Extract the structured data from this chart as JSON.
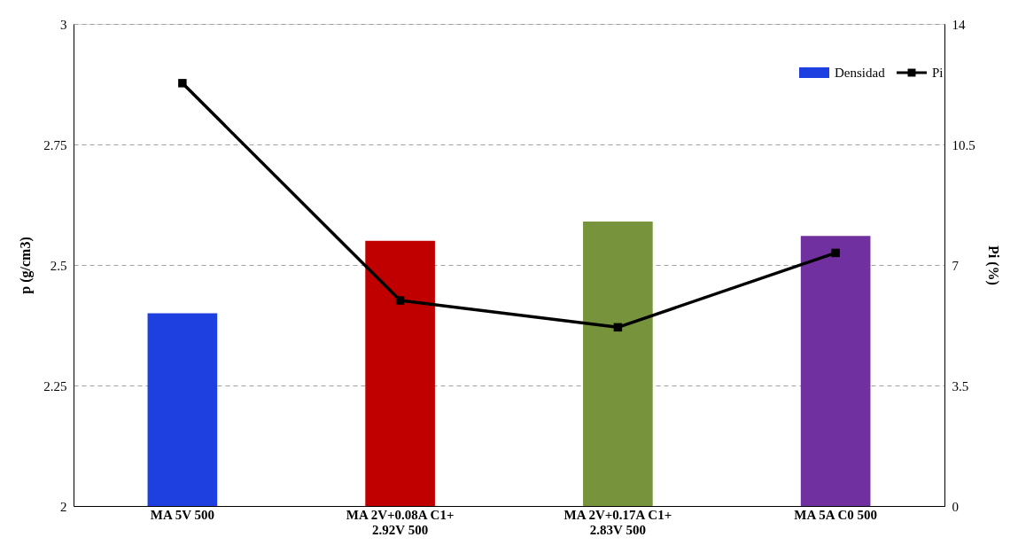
{
  "chart_data": {
    "type": "bar",
    "ylabel": "p (g/cm3)",
    "y2label": "Pi (%)",
    "categories": [
      "MA 5V 500",
      "MA 2V+0.08A C1+ 2.92V 500",
      "MA 2V+0.17A C1+ 2.83V 500",
      "MA 5A C0 500"
    ],
    "series": [
      {
        "name": "Densidad",
        "colors": [
          "#1f40e0",
          "#c00000",
          "#77933c",
          "#7030a0"
        ],
        "values": [
          2.4,
          2.55,
          2.59,
          2.56
        ]
      },
      {
        "name": "Pi",
        "type": "line",
        "axis": "y2",
        "color": "#000000",
        "marker": "square",
        "line_style": "solid",
        "values": [
          12.28,
          5.97,
          5.19,
          7.35
        ]
      }
    ],
    "ylim": [
      2,
      3
    ],
    "yticks": [
      2,
      2.25,
      2.5,
      2.75,
      3
    ],
    "y2lim": [
      0,
      14
    ],
    "y2ticks": [
      0,
      3.5,
      7,
      10.5,
      14
    ],
    "grid": "y",
    "legend": "top right"
  }
}
